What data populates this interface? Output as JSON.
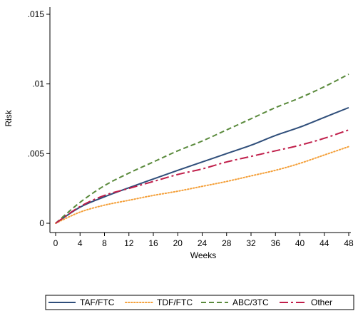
{
  "chart_data": {
    "type": "line",
    "xlabel": "Weeks",
    "ylabel": "Risk",
    "xlim": [
      0,
      48
    ],
    "ylim": [
      0,
      0.015
    ],
    "x_ticks": [
      0,
      4,
      8,
      12,
      16,
      20,
      24,
      28,
      32,
      36,
      40,
      44,
      48
    ],
    "x_tick_labels": [
      "0",
      "4",
      "8",
      "12",
      "16",
      "20",
      "24",
      "28",
      "32",
      "36",
      "40",
      "44",
      "48"
    ],
    "y_ticks": [
      0,
      0.005,
      0.01,
      0.015
    ],
    "y_tick_labels": [
      "0",
      ".005",
      ".01",
      ".015"
    ],
    "grid": false,
    "legend_position": "bottom",
    "series": [
      {
        "name": "TAF/FTC",
        "color": "#2f4e7a",
        "dash": "solid",
        "x": [
          0,
          4,
          8,
          12,
          16,
          20,
          24,
          28,
          32,
          36,
          40,
          44,
          48
        ],
        "values": [
          0,
          0.00115,
          0.0019,
          0.00255,
          0.00318,
          0.0038,
          0.0044,
          0.005,
          0.0056,
          0.0063,
          0.0069,
          0.0076,
          0.0083
        ]
      },
      {
        "name": "TDF/FTC",
        "color": "#f4a03a",
        "dash": "dotted",
        "x": [
          0,
          4,
          8,
          12,
          16,
          20,
          24,
          28,
          32,
          36,
          40,
          44,
          48
        ],
        "values": [
          0,
          0.0008,
          0.0013,
          0.00165,
          0.002,
          0.0023,
          0.00265,
          0.003,
          0.0034,
          0.0038,
          0.0043,
          0.0049,
          0.0055
        ]
      },
      {
        "name": "ABC/3TC",
        "color": "#5a8a3c",
        "dash": "dashed",
        "x": [
          0,
          4,
          8,
          12,
          16,
          20,
          24,
          28,
          32,
          36,
          40,
          44,
          48
        ],
        "values": [
          0,
          0.0015,
          0.0027,
          0.0036,
          0.0044,
          0.0052,
          0.0059,
          0.0067,
          0.0075,
          0.0083,
          0.009,
          0.0098,
          0.0107
        ]
      },
      {
        "name": "Other",
        "color": "#c01e4a",
        "dash": "longdash-dot",
        "x": [
          0,
          4,
          8,
          12,
          16,
          20,
          24,
          28,
          32,
          36,
          40,
          44,
          48
        ],
        "values": [
          0,
          0.0012,
          0.002,
          0.0025,
          0.003,
          0.0035,
          0.0039,
          0.0044,
          0.0048,
          0.0052,
          0.0056,
          0.0061,
          0.0067
        ]
      }
    ]
  }
}
